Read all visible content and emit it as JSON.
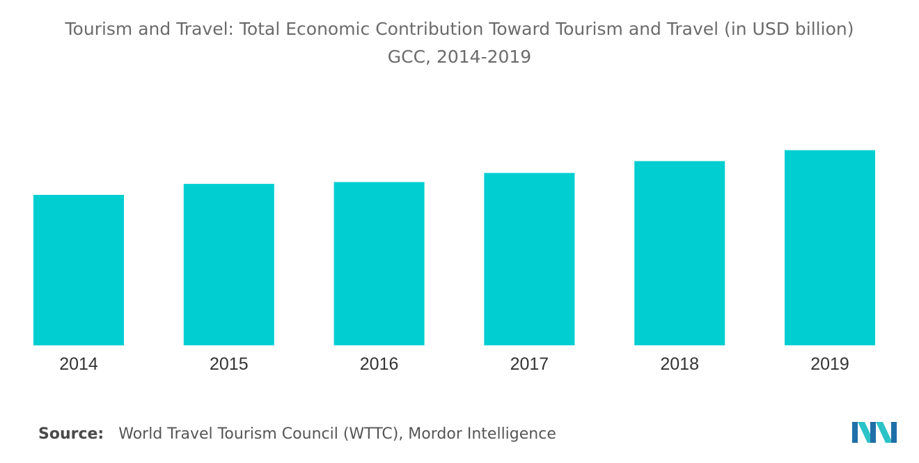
{
  "chart_data": {
    "type": "bar",
    "title": "Tourism and Travel: Total Economic Contribution Toward Tourism and Travel (in USD billion)",
    "subtitle": "GCC, 2014-2019",
    "xlabel": "",
    "ylabel": "",
    "categories": [
      "2014",
      "2015",
      "2016",
      "2017",
      "2018",
      "2019"
    ],
    "values": [
      165,
      177,
      179,
      189,
      202,
      214
    ],
    "ylim": [
      0,
      300
    ],
    "grid": false,
    "legend": "none",
    "bar_color": "#00CED1"
  },
  "source": {
    "label": "Source:",
    "text": "World Travel Tourism Council (WTTC), Mordor Intelligence"
  },
  "logo": {
    "icon": "mordor-intelligence-logo-icon",
    "colors": [
      "#1f6fa8",
      "#2cc3c8"
    ]
  }
}
